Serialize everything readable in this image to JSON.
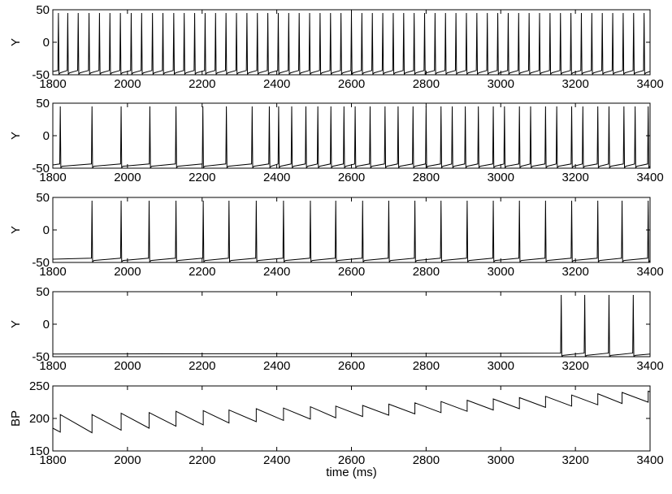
{
  "chart_data": [
    {
      "type": "line",
      "ylabel": "Y",
      "xlim": [
        1800,
        3400
      ],
      "ylim": [
        -50,
        50
      ],
      "xticks": [
        1800,
        2000,
        2200,
        2400,
        2600,
        2800,
        3000,
        3200,
        3400
      ],
      "yticks": [
        50,
        0,
        -50
      ],
      "baseline": -46,
      "spike_peak": 45,
      "spike_times": [
        1815,
        1840,
        1868,
        1897,
        1925,
        1953,
        1981,
        2010,
        2038,
        2067,
        2095,
        2124,
        2152,
        2180,
        2208,
        2236,
        2264,
        2292,
        2320,
        2348,
        2376,
        2404,
        2432,
        2460,
        2488,
        2516,
        2544,
        2572,
        2600,
        2628,
        2656,
        2684,
        2712,
        2740,
        2768,
        2796,
        2824,
        2852,
        2880,
        2908,
        2936,
        2964,
        2992,
        3020,
        3048,
        3076,
        3104,
        3132,
        3160,
        3188,
        3216,
        3244,
        3272,
        3300,
        3328,
        3356,
        3384
      ]
    },
    {
      "type": "line",
      "ylabel": "Y",
      "xlim": [
        1800,
        3400
      ],
      "ylim": [
        -50,
        50
      ],
      "xticks": [
        1800,
        2000,
        2200,
        2400,
        2600,
        2800,
        3000,
        3200,
        3400
      ],
      "yticks": [
        50,
        0,
        -50
      ],
      "baseline": -46,
      "spike_peak": 45,
      "spike_times": [
        1820,
        1905,
        1983,
        2060,
        2130,
        2202,
        2265,
        2334,
        2380,
        2405,
        2440,
        2478,
        2510,
        2545,
        2580,
        2610,
        2650,
        2690,
        2725,
        2765,
        2800,
        2840,
        2870,
        2905,
        2940,
        2980,
        3010,
        3050,
        3080,
        3120,
        3150,
        3190,
        3220,
        3260,
        3290,
        3330,
        3360,
        3395
      ]
    },
    {
      "type": "line",
      "ylabel": "Y",
      "xlim": [
        1800,
        3400
      ],
      "ylim": [
        -50,
        50
      ],
      "xticks": [
        1800,
        2000,
        2200,
        2400,
        2600,
        2800,
        3000,
        3200,
        3400
      ],
      "yticks": [
        50,
        0,
        -50
      ],
      "baseline": -46,
      "spike_peak": 45,
      "spike_times": [
        1905,
        1983,
        2058,
        2130,
        2203,
        2272,
        2345,
        2418,
        2490,
        2558,
        2630,
        2700,
        2770,
        2840,
        2910,
        2980,
        3050,
        3120,
        3190,
        3260,
        3325,
        3395
      ]
    },
    {
      "type": "line",
      "ylabel": "Y",
      "xlim": [
        1800,
        3400
      ],
      "ylim": [
        -50,
        50
      ],
      "xticks": [
        1800,
        2000,
        2200,
        2400,
        2600,
        2800,
        3000,
        3200,
        3400
      ],
      "yticks": [
        50,
        0,
        -50
      ],
      "baseline": -47,
      "spike_peak": 45,
      "spike_times": [
        3162,
        3225,
        3290,
        3355
      ]
    },
    {
      "type": "line",
      "ylabel": "BP",
      "xlabel": "time (ms)",
      "xlim": [
        1800,
        3400
      ],
      "ylim": [
        150,
        250
      ],
      "xticks": [
        1800,
        2000,
        2200,
        2400,
        2600,
        2800,
        3000,
        3200,
        3400
      ],
      "yticks": [
        250,
        200,
        150
      ],
      "x": [
        1800,
        1820,
        1820,
        1905,
        1905,
        1983,
        1983,
        2058,
        2058,
        2130,
        2130,
        2203,
        2203,
        2272,
        2272,
        2345,
        2345,
        2418,
        2418,
        2490,
        2490,
        2558,
        2558,
        2630,
        2630,
        2700,
        2700,
        2770,
        2770,
        2840,
        2840,
        2910,
        2910,
        2980,
        2980,
        3050,
        3050,
        3120,
        3120,
        3190,
        3190,
        3260,
        3260,
        3325,
        3325,
        3395,
        3395,
        3400
      ],
      "y": [
        185,
        179,
        206,
        178,
        206,
        182,
        208,
        185,
        209,
        188,
        211,
        190,
        212,
        193,
        213,
        195,
        215,
        197,
        216,
        199,
        218,
        201,
        219,
        203,
        220,
        205,
        222,
        207,
        224,
        209,
        226,
        211,
        228,
        213,
        230,
        215,
        232,
        217,
        234,
        219,
        236,
        221,
        238,
        223,
        240,
        225,
        242,
        241
      ]
    }
  ]
}
